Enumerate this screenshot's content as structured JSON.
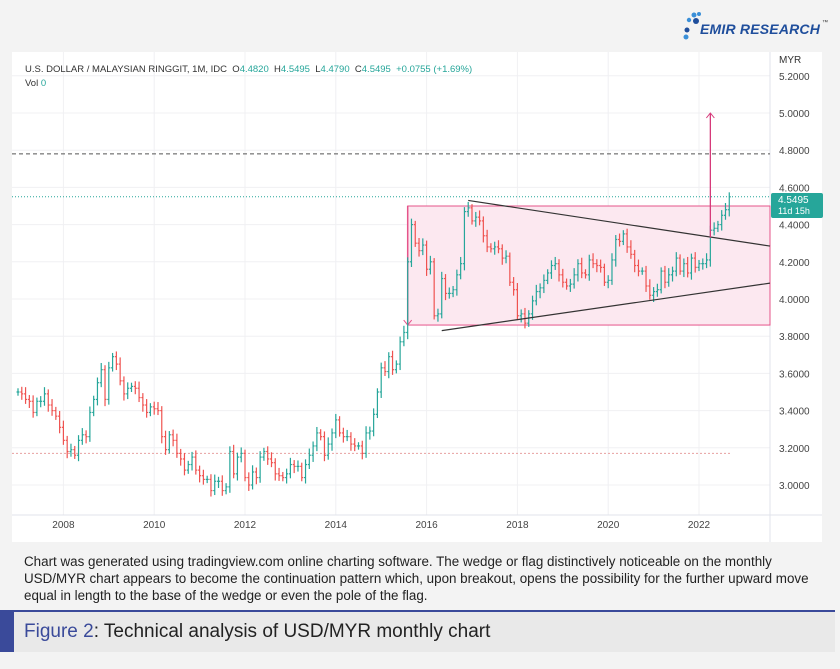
{
  "brand": {
    "name": "EMIR RESEARCH",
    "tm": "™",
    "color": "#1f4e9c"
  },
  "legend": {
    "symbol": "U.S. DOLLAR / MALAYSIAN RINGGIT, 1M, IDC",
    "o_label": "O",
    "o": "4.4820",
    "h_label": "H",
    "h": "4.5495",
    "l_label": "L",
    "l": "4.4790",
    "c_label": "C",
    "c": "4.5495",
    "change": "+0.0755 (+1.69%)",
    "vol_label": "Vol",
    "vol": "0"
  },
  "price_badge": {
    "price": "4.5495",
    "countdown": "11d 15h",
    "color": "#26a69a"
  },
  "chart_data": {
    "type": "ohlc",
    "currency_label": "MYR",
    "start": "2007-01",
    "interval": "1M",
    "ylim": [
      2.9,
      5.24
    ],
    "yticks": [
      "3.0000",
      "3.2000",
      "3.4000",
      "3.6000",
      "3.8000",
      "4.0000",
      "4.2000",
      "4.4000",
      "4.6000",
      "4.8000",
      "5.0000",
      "5.2000"
    ],
    "xticks": [
      "2008",
      "2010",
      "2012",
      "2014",
      "2016",
      "2018",
      "2020",
      "2022"
    ],
    "grid": true,
    "up_color": "#26a69a",
    "down_color": "#ef5350",
    "closes": [
      3.5,
      3.49,
      3.46,
      3.45,
      3.39,
      3.45,
      3.45,
      3.49,
      3.43,
      3.4,
      3.37,
      3.31,
      3.24,
      3.18,
      3.19,
      3.16,
      3.24,
      3.27,
      3.26,
      3.39,
      3.46,
      3.55,
      3.62,
      3.46,
      3.63,
      3.69,
      3.65,
      3.56,
      3.49,
      3.52,
      3.53,
      3.52,
      3.47,
      3.43,
      3.39,
      3.42,
      3.41,
      3.4,
      3.26,
      3.19,
      3.27,
      3.24,
      3.17,
      3.14,
      3.08,
      3.11,
      3.15,
      3.08,
      3.05,
      3.03,
      3.03,
      2.97,
      3.02,
      3.02,
      2.97,
      2.99,
      3.18,
      3.06,
      3.15,
      3.17,
      3.04,
      3.0,
      3.07,
      3.04,
      3.15,
      3.18,
      3.14,
      3.12,
      3.06,
      3.05,
      3.04,
      3.06,
      3.11,
      3.1,
      3.1,
      3.04,
      3.11,
      3.16,
      3.21,
      3.28,
      3.26,
      3.16,
      3.22,
      3.28,
      3.35,
      3.28,
      3.26,
      3.26,
      3.22,
      3.21,
      3.21,
      3.17,
      3.28,
      3.29,
      3.38,
      3.5,
      3.63,
      3.61,
      3.69,
      3.62,
      3.65,
      3.77,
      3.82,
      4.2,
      4.4,
      4.3,
      4.26,
      4.29,
      4.16,
      4.2,
      3.91,
      3.92,
      4.11,
      4.03,
      4.03,
      4.05,
      4.13,
      4.19,
      4.47,
      4.49,
      4.42,
      4.44,
      4.42,
      4.34,
      4.28,
      4.27,
      4.28,
      4.27,
      4.22,
      4.23,
      4.09,
      4.05,
      3.91,
      3.92,
      3.87,
      3.92,
      3.99,
      4.04,
      4.06,
      4.1,
      4.14,
      4.18,
      4.19,
      4.13,
      4.09,
      4.07,
      4.08,
      4.13,
      4.19,
      4.14,
      4.13,
      4.21,
      4.19,
      4.18,
      4.17,
      4.09,
      4.1,
      4.21,
      4.32,
      4.31,
      4.35,
      4.28,
      4.24,
      4.18,
      4.15,
      4.15,
      4.07,
      4.02,
      4.04,
      4.05,
      4.15,
      4.09,
      4.13,
      4.15,
      4.22,
      4.15,
      4.19,
      4.14,
      4.22,
      4.17,
      4.19,
      4.19,
      4.21,
      4.37,
      4.38,
      4.4,
      4.45,
      4.48,
      4.5495
    ],
    "annotations": {
      "range_box": {
        "from": "2015-08",
        "top": 4.5,
        "bottom": 3.86,
        "color": "#e5548a"
      },
      "wedge_upper": [
        [
          "2016-12",
          4.53
        ],
        [
          "2023-06",
          4.29
        ]
      ],
      "wedge_lower": [
        [
          "2016-05",
          3.83
        ],
        [
          "2023-06",
          4.08
        ]
      ],
      "target_arrow": {
        "at": "2022-04",
        "from": 4.33,
        "to": 5.0
      },
      "dashed_level": 4.78,
      "prior_close_level": 3.17
    }
  },
  "caption": "Chart was generated using tradingview.com online charting software. The wedge or flag distinctively noticeable on the monthly USD/MYR chart appears to become the continuation pattern which, upon breakout, opens the possibility for the further upward move equal in length to the base of the wedge or even the pole of the flag.",
  "figure": {
    "label": "Figure 2",
    "title": ": Technical analysis of USD/MYR monthly chart",
    "color": "#3a4a9a"
  }
}
